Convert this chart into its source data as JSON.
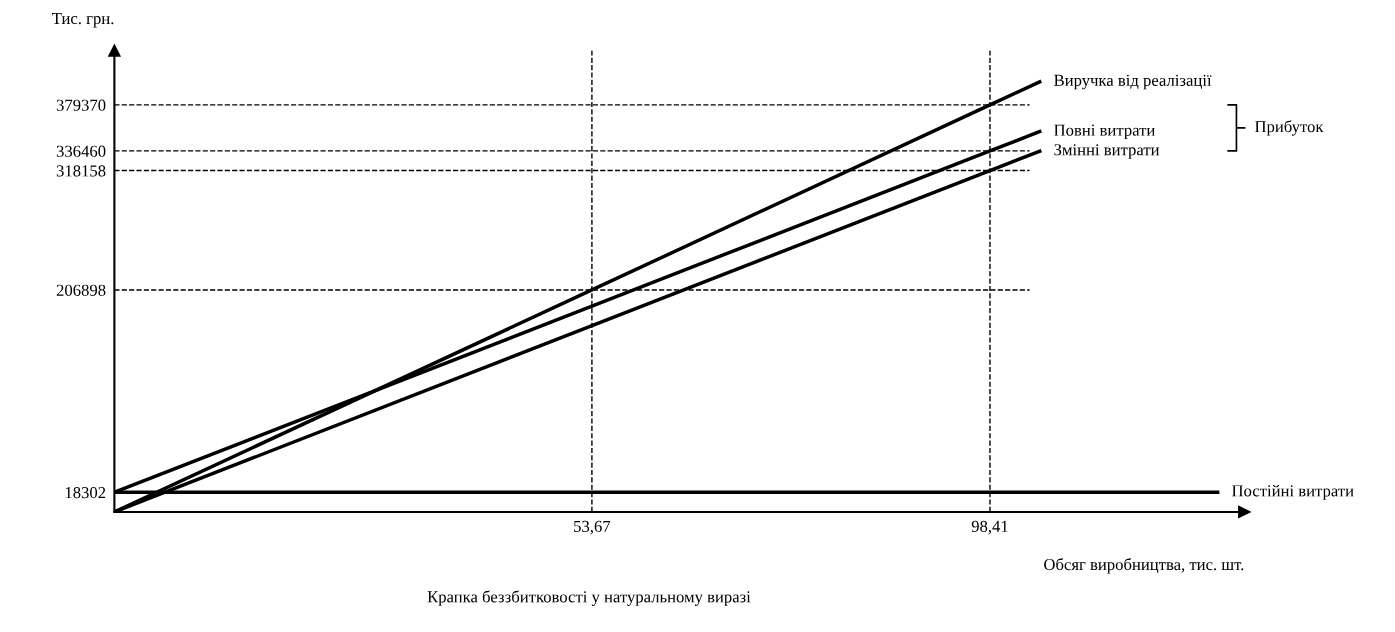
{
  "chart_data": {
    "type": "line",
    "xlabel": "Обсяг виробництва, тис. шт.",
    "ylabel": "Тис. грн.",
    "series": [
      {
        "name": "Виручка від реалізації",
        "color": "#000000",
        "x": [
          0,
          53.67,
          98.41,
          104
        ],
        "values": [
          0,
          206898,
          379370,
          400900
        ]
      },
      {
        "name": "Повні витрати",
        "color": "#000000",
        "x": [
          0,
          98.41,
          104
        ],
        "values": [
          18302,
          336460,
          354500
        ]
      },
      {
        "name": "Змінні витрати",
        "color": "#000000",
        "x": [
          0,
          98.41,
          104
        ],
        "values": [
          0,
          318158,
          336200
        ]
      },
      {
        "name": "Постійні витрати",
        "color": "#000000",
        "x": [
          0,
          124
        ],
        "values": [
          18302,
          18302
        ]
      }
    ],
    "xlim": [
      0,
      127
    ],
    "ylim": [
      0,
      430000
    ],
    "xticks": [
      {
        "value": 53.67,
        "label": "53,67"
      },
      {
        "value": 98.41,
        "label": "98,41"
      }
    ],
    "yticks": [
      18302,
      206898,
      318158,
      336460,
      379370
    ],
    "ref_lines": [
      {
        "axis": "y",
        "value": 379370,
        "color": "#000000",
        "line_style": "dashed"
      },
      {
        "axis": "y",
        "value": 336460,
        "color": "#000000",
        "line_style": "dashed"
      },
      {
        "axis": "y",
        "value": 318158,
        "color": "#000000",
        "line_style": "dashed"
      },
      {
        "axis": "y",
        "value": 206898,
        "color": "#000000",
        "line_style": "dashed"
      },
      {
        "axis": "x",
        "value": 53.67,
        "color": "#000000",
        "line_style": "dashed"
      },
      {
        "axis": "x",
        "value": 98.41,
        "color": "#000000",
        "line_style": "dashed"
      }
    ],
    "annotations": [
      "Прибуток",
      "Крапка беззбитковості у натуральному виразі"
    ],
    "grid": false,
    "legend": false,
    "marker": "none",
    "line_style": "solid"
  }
}
